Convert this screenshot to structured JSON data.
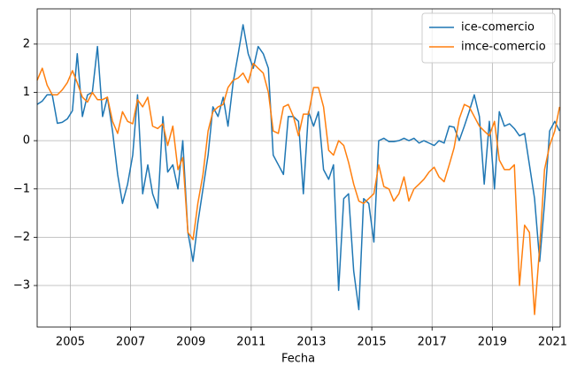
{
  "chart_data": {
    "type": "line",
    "x_label": "Fecha",
    "x": [
      2003.9,
      2004.07,
      2004.23,
      2004.4,
      2004.57,
      2004.73,
      2004.9,
      2005.07,
      2005.23,
      2005.4,
      2005.57,
      2005.73,
      2005.9,
      2006.07,
      2006.23,
      2006.4,
      2006.57,
      2006.73,
      2006.9,
      2007.07,
      2007.23,
      2007.4,
      2007.57,
      2007.73,
      2007.9,
      2008.07,
      2008.23,
      2008.4,
      2008.57,
      2008.73,
      2008.9,
      2009.07,
      2009.23,
      2009.4,
      2009.57,
      2009.73,
      2009.9,
      2010.07,
      2010.23,
      2010.4,
      2010.57,
      2010.73,
      2010.9,
      2011.07,
      2011.23,
      2011.4,
      2011.57,
      2011.73,
      2011.9,
      2012.07,
      2012.23,
      2012.4,
      2012.57,
      2012.73,
      2012.9,
      2013.07,
      2013.23,
      2013.4,
      2013.57,
      2013.73,
      2013.9,
      2014.07,
      2014.23,
      2014.4,
      2014.57,
      2014.73,
      2014.9,
      2015.07,
      2015.23,
      2015.4,
      2015.57,
      2015.73,
      2015.9,
      2016.07,
      2016.23,
      2016.4,
      2016.57,
      2016.73,
      2016.9,
      2017.07,
      2017.23,
      2017.4,
      2017.57,
      2017.73,
      2017.9,
      2018.07,
      2018.23,
      2018.4,
      2018.57,
      2018.73,
      2018.9,
      2019.07,
      2019.23,
      2019.4,
      2019.57,
      2019.73,
      2019.9,
      2020.07,
      2020.23,
      2020.4,
      2020.57,
      2020.73,
      2020.9,
      2021.07,
      2021.23
    ],
    "series": [
      {
        "name": "ice-comercio",
        "color": "#1f77b4",
        "values": [
          0.75,
          0.82,
          0.95,
          0.95,
          0.36,
          0.38,
          0.45,
          0.62,
          1.8,
          0.5,
          0.95,
          1.0,
          1.95,
          0.5,
          0.9,
          0.2,
          -0.7,
          -1.3,
          -0.9,
          -0.3,
          0.95,
          -1.1,
          -0.5,
          -1.1,
          -1.4,
          0.5,
          -0.65,
          -0.5,
          -1.0,
          0.0,
          -1.9,
          -2.5,
          -1.7,
          -1.0,
          -0.3,
          0.7,
          0.5,
          0.9,
          0.3,
          1.2,
          1.8,
          2.4,
          1.8,
          1.5,
          1.95,
          1.8,
          1.5,
          -0.3,
          -0.5,
          -0.7,
          0.5,
          0.5,
          0.4,
          -1.1,
          0.6,
          0.3,
          0.6,
          -0.6,
          -0.8,
          -0.5,
          -3.1,
          -1.2,
          -1.1,
          -2.7,
          -3.5,
          -1.2,
          -1.3,
          -2.1,
          0.0,
          0.05,
          -0.02,
          -0.02,
          0.0,
          0.05,
          0.0,
          0.05,
          -0.05,
          0.0,
          -0.05,
          -0.1,
          0.0,
          -0.05,
          0.3,
          0.28,
          0.0,
          0.3,
          0.6,
          0.95,
          0.5,
          -0.9,
          0.4,
          -1.0,
          0.6,
          0.3,
          0.35,
          0.25,
          0.1,
          0.15,
          -0.5,
          -1.2,
          -2.5,
          -1.3,
          0.2,
          0.4,
          0.2
        ]
      },
      {
        "name": "imce-comercio",
        "color": "#ff7f0e",
        "values": [
          1.25,
          1.5,
          1.15,
          0.95,
          0.95,
          1.05,
          1.2,
          1.45,
          1.2,
          0.9,
          0.8,
          1.0,
          0.85,
          0.85,
          0.9,
          0.4,
          0.15,
          0.6,
          0.4,
          0.35,
          0.85,
          0.7,
          0.9,
          0.3,
          0.25,
          0.35,
          -0.1,
          0.3,
          -0.6,
          -0.35,
          -1.9,
          -2.05,
          -1.3,
          -0.7,
          0.2,
          0.6,
          0.7,
          0.75,
          1.1,
          1.25,
          1.3,
          1.4,
          1.2,
          1.6,
          1.5,
          1.4,
          1.0,
          0.2,
          0.15,
          0.7,
          0.75,
          0.5,
          0.1,
          0.55,
          0.55,
          1.1,
          1.1,
          0.7,
          -0.2,
          -0.3,
          0.0,
          -0.1,
          -0.45,
          -0.9,
          -1.25,
          -1.3,
          -1.2,
          -1.1,
          -0.5,
          -0.95,
          -1.0,
          -1.25,
          -1.1,
          -0.75,
          -1.25,
          -1.0,
          -0.9,
          -0.8,
          -0.65,
          -0.55,
          -0.75,
          -0.85,
          -0.5,
          -0.15,
          0.45,
          0.75,
          0.7,
          0.5,
          0.3,
          0.2,
          0.1,
          0.4,
          -0.4,
          -0.6,
          -0.6,
          -0.5,
          -3.0,
          -1.75,
          -1.9,
          -3.6,
          -2.2,
          -0.6,
          -0.1,
          0.2,
          0.7
        ]
      }
    ],
    "xlim": [
      2003.9,
      2021.25
    ],
    "xticks": [
      2005,
      2007,
      2009,
      2011,
      2013,
      2015,
      2017,
      2019,
      2021
    ],
    "ylim": [
      -3.86,
      2.73
    ],
    "yticks": [
      {
        "value": -3,
        "label": "−3"
      },
      {
        "value": -2,
        "label": "−2"
      },
      {
        "value": -1,
        "label": "−1"
      },
      0,
      1,
      2
    ],
    "grid": true,
    "legend": "upper right"
  }
}
